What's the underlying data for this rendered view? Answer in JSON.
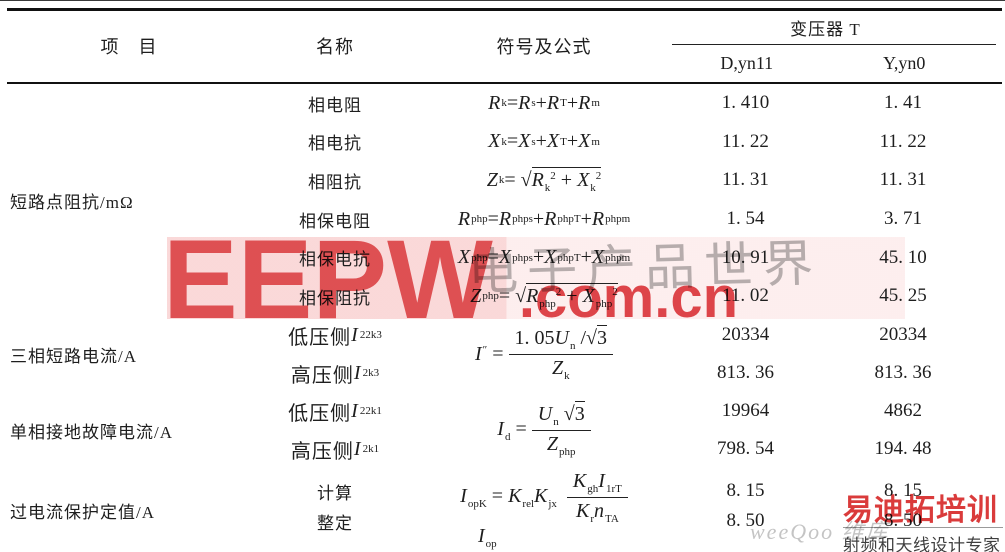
{
  "header": {
    "col_item": "项　目",
    "col_name": "名称",
    "col_formula": "符号及公式",
    "col_transformer": "变压器 T",
    "col_d": "D,yn11",
    "col_y": "Y,yn0"
  },
  "groups": [
    {
      "item": "短路点阻抗/mΩ",
      "rows": [
        {
          "name": "相电阻",
          "formula": {
            "text": "R~k~ = R~s~ + R~T~ + R~m~"
          },
          "d": "1. 410",
          "y": "1. 41"
        },
        {
          "name": "相电抗",
          "formula": {
            "text": "X~k~ = X~s~ + X~T~ + X~m~"
          },
          "d": "11. 22",
          "y": "11. 22"
        },
        {
          "name": "相阻抗",
          "formula": {
            "text": "Z~k~ = √{R~k~^2^ + X~k~^2^}"
          },
          "d": "11. 31",
          "y": "11. 31"
        },
        {
          "name": "相保电阻",
          "formula": {
            "text": "R~php~ = R~phps~ + R~phpT~ + R~phpm~"
          },
          "d": "1. 54",
          "y": "3. 71"
        },
        {
          "name": "相保电抗",
          "formula": {
            "text": "X~php~ = X~phps~ + X~phpT~ + X~phpm~"
          },
          "d": "10. 91",
          "y": "45. 10"
        },
        {
          "name": "相保阻抗",
          "formula": {
            "text": "Z~php~ = √{R~php~^2^ + X~php~^2^}"
          },
          "d": "11. 02",
          "y": "45. 25"
        }
      ]
    },
    {
      "item": "三相短路电流/A",
      "rows": [
        {
          "name": "低压侧 I~22k3~",
          "d": "20334",
          "y": "20334"
        },
        {
          "name": "高压侧 I~2k3~",
          "d": "813. 36",
          "y": "813. 36"
        }
      ],
      "formula": {
        "pre": "I^″^ =",
        "num": "1. 05U~n~ /√{3}",
        "den": "Z~k~"
      }
    },
    {
      "item": "单相接地故障电流/A",
      "rows": [
        {
          "name": "低压侧 I~22k1~",
          "d": "19964",
          "y": "4862"
        },
        {
          "name": "高压侧 I~2k1~",
          "d": "798. 54",
          "y": "194. 48"
        }
      ],
      "formula": {
        "pre": "I~d~ =",
        "num": "U~n~ √{3}",
        "den": "Z~php~"
      }
    },
    {
      "item": "过电流保护定值/A",
      "rows": [
        {
          "name": "计算",
          "d": "8. 15",
          "y": "8. 15"
        },
        {
          "name": "整定",
          "d": "8. 50",
          "y": "8. 50"
        }
      ],
      "formula": {
        "pre": "I~opK~ = K~rel~K~jx~",
        "num": "K~gh~I~1rT~",
        "den": "K~r~n~TA~"
      },
      "formula2": {
        "text": "I~op~"
      }
    }
  ],
  "watermarks": {
    "eepw_letters": "EEPW",
    "eepw_domain": ".com.cn",
    "calligraphy": "电子产品世界",
    "training_logo": "易迪拓培训",
    "training_tagline": "射频和天线设计专家",
    "training_script": "weeQoo 维库"
  },
  "colors": {
    "accent_red": "#dd3a3e",
    "watermark_pink": "#ee8080",
    "rule_black": "#111111",
    "text": "#1e1e1e"
  }
}
